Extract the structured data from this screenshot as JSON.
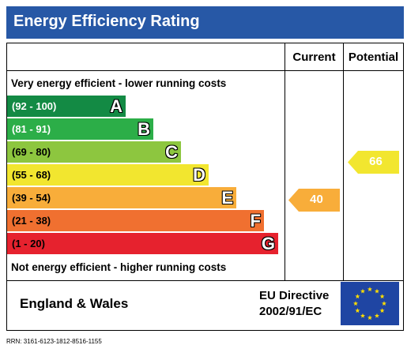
{
  "header": {
    "title": "Energy Efficiency Rating"
  },
  "columns": {
    "current": "Current",
    "potential": "Potential"
  },
  "scale": {
    "top_text": "Very energy efficient - lower running costs",
    "bottom_text": "Not energy efficient - higher running costs"
  },
  "bands": [
    {
      "range": "(92 - 100)",
      "letter": "A",
      "color": "#138a44",
      "range_color": "#ffffff"
    },
    {
      "range": "(81 - 91)",
      "letter": "B",
      "color": "#2cae48",
      "range_color": "#ffffff"
    },
    {
      "range": "(69 - 80)",
      "letter": "C",
      "color": "#8dc63f",
      "range_color": "#000000"
    },
    {
      "range": "(55 - 68)",
      "letter": "D",
      "color": "#f2e62f",
      "range_color": "#000000"
    },
    {
      "range": "(39 - 54)",
      "letter": "E",
      "color": "#f8ad3a",
      "range_color": "#000000"
    },
    {
      "range": "(21 - 38)",
      "letter": "F",
      "color": "#f07030",
      "range_color": "#000000"
    },
    {
      "range": "(1 - 20)",
      "letter": "G",
      "color": "#e6222e",
      "range_color": "#000000"
    }
  ],
  "ratings": {
    "current": {
      "value": "40",
      "band": "E",
      "color": "#f8ad3a"
    },
    "potential": {
      "value": "66",
      "band": "D",
      "color": "#f2e62f"
    }
  },
  "footer": {
    "region": "England & Wales",
    "directive_line1": "EU Directive",
    "directive_line2": "2002/91/EC",
    "flag_icon": "eu-flag-icon"
  },
  "rrn": "RRN: 3161-6123-1812-8516-1155"
}
